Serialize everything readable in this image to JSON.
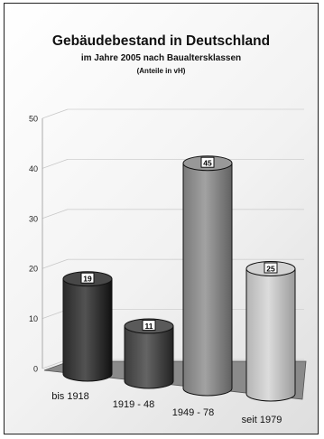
{
  "chart_data": {
    "type": "bar",
    "title": "Gebäudebestand in Deutschland",
    "subtitle": "im Jahre 2005 nach Baualtersklassen",
    "note": "(Anteile in vH)",
    "categories": [
      "bis 1918",
      "1919 - 48",
      "1949 - 78",
      "seit 1979"
    ],
    "values": [
      19,
      11,
      45,
      25
    ],
    "ylim": [
      0,
      50
    ],
    "yticks": [
      0,
      10,
      20,
      30,
      40,
      50
    ],
    "grid": true,
    "bar_colors": [
      "#2a2a2a",
      "#3c3c3c",
      "#7a7a7a",
      "#b4b4b4"
    ]
  }
}
